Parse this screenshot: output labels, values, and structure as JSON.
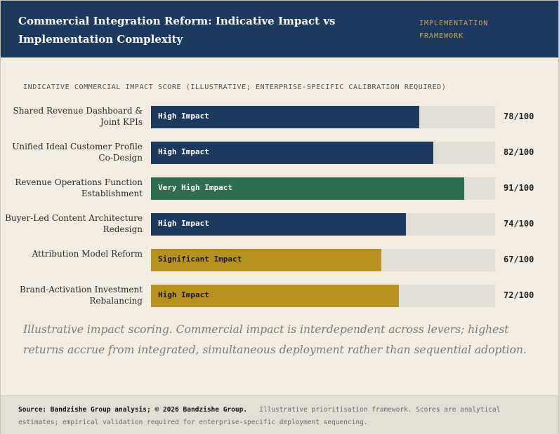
{
  "header": {
    "title": "Commercial Integration Reform: Indicative Impact vs Implementation Complexity",
    "tag": "IMPLEMENTATION FRAMEWORK"
  },
  "chart_data": {
    "type": "bar",
    "orientation": "horizontal",
    "title": "INDICATIVE COMMERCIAL IMPACT SCORE (ILLUSTRATIVE; ENTERPRISE-SPECIFIC CALIBRATION REQUIRED)",
    "xlim": [
      0,
      100
    ],
    "categories": [
      "Shared Revenue Dashboard & Joint KPIs",
      "Unified Ideal Customer Profile Co-Design",
      "Revenue Operations Function Establishment",
      "Buyer-Led Content Architecture Redesign",
      "Attribution Model Reform",
      "Brand-Activation Investment Rebalancing"
    ],
    "values": [
      78,
      82,
      91,
      74,
      67,
      72
    ],
    "bar_labels": [
      "High Impact",
      "High Impact",
      "Very High Impact",
      "High Impact",
      "Significant Impact",
      "High Impact"
    ],
    "value_labels": [
      "78/100",
      "82/100",
      "91/100",
      "74/100",
      "67/100",
      "72/100"
    ],
    "bar_colors": [
      "#1c3a5f",
      "#1c3a5f",
      "#2e6e4e",
      "#1c3a5f",
      "#b8921e",
      "#b8921e"
    ],
    "label_colors": [
      "#ffffff",
      "#ffffff",
      "#ffffff",
      "#ffffff",
      "#1a1a1a",
      "#1a1a1a"
    ],
    "track_color": "#e0ddd4"
  },
  "note": "Illustrative impact scoring. Commercial impact is interdependent across levers; highest returns accrue from integrated, simultaneous deployment rather than sequential adoption.",
  "footer": {
    "source": "Source: Bandzishe Group analysis; © 2026 Bandzishe Group.",
    "disclaimer": "Illustrative prioritisation framework. Scores are analytical estimates; empirical validation required for enterprise-specific deployment sequencing."
  },
  "colors": {
    "header_bg": "#1c3a5f",
    "page_bg": "#f3ece0",
    "accent_gold": "#c9a94a"
  }
}
